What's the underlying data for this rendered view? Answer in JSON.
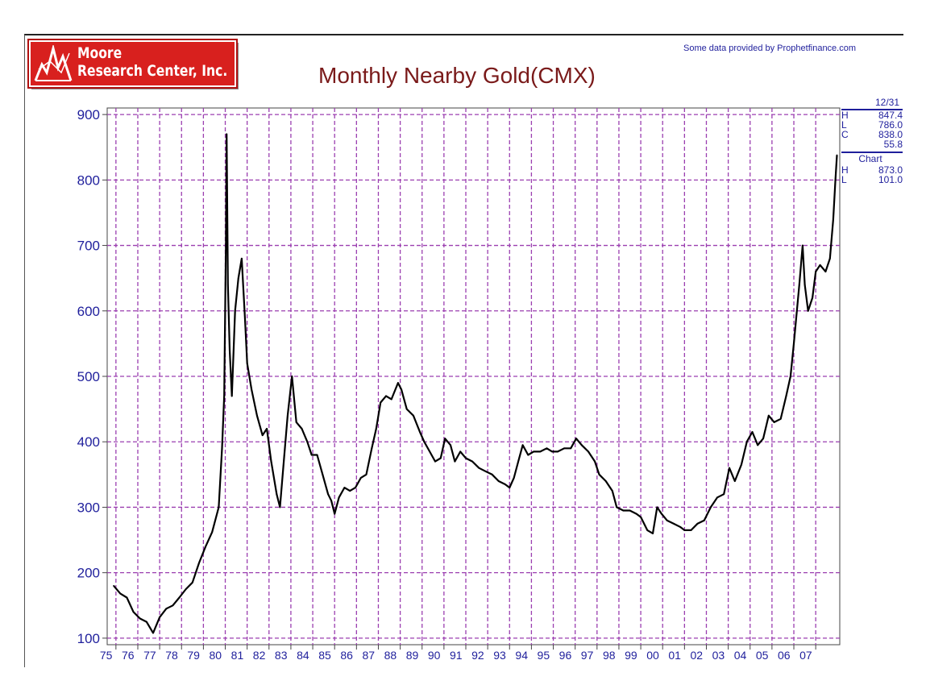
{
  "header": {
    "logo_line1": "Moore",
    "logo_line2": "Research Center, Inc.",
    "credit": "Some data provided by Prophetfinance.com",
    "title": "Monthly Nearby Gold(CMX)"
  },
  "stats": {
    "date": "12/31",
    "high_label": "H",
    "high": "847.4",
    "low_label": "L",
    "low": "786.0",
    "close_label": "C",
    "close": "838.0",
    "change": "55.8",
    "chart_label": "Chart",
    "chart_high_label": "H",
    "chart_high": "873.0",
    "chart_low_label": "L",
    "chart_low": "101.0"
  },
  "colors": {
    "grid": "#9b3fb0",
    "axis_text": "#1f1f9c",
    "line": "#000000",
    "title": "#7a1a1a",
    "logo_bg": "#d8201e"
  },
  "chart_data": {
    "type": "line",
    "title": "Monthly Nearby Gold(CMX)",
    "xlabel": "",
    "ylabel": "",
    "ylim": [
      90,
      910
    ],
    "y_ticks": [
      100,
      200,
      300,
      400,
      500,
      600,
      700,
      800,
      900
    ],
    "x_tick_labels": [
      "75",
      "76",
      "77",
      "78",
      "79",
      "80",
      "81",
      "82",
      "83",
      "84",
      "85",
      "86",
      "87",
      "88",
      "89",
      "90",
      "91",
      "92",
      "93",
      "94",
      "95",
      "96",
      "97",
      "98",
      "99",
      "00",
      "01",
      "02",
      "03",
      "04",
      "05",
      "06",
      "07"
    ],
    "xlim": [
      1974.6,
      2008.1
    ],
    "grid": true,
    "series": [
      {
        "points": [
          [
            1974.9,
            180
          ],
          [
            1975.2,
            168
          ],
          [
            1975.5,
            162
          ],
          [
            1975.8,
            140
          ],
          [
            1976.1,
            130
          ],
          [
            1976.4,
            125
          ],
          [
            1976.7,
            108
          ],
          [
            1977.0,
            132
          ],
          [
            1977.3,
            145
          ],
          [
            1977.6,
            150
          ],
          [
            1977.9,
            162
          ],
          [
            1978.2,
            175
          ],
          [
            1978.5,
            185
          ],
          [
            1978.8,
            215
          ],
          [
            1979.1,
            240
          ],
          [
            1979.4,
            262
          ],
          [
            1979.7,
            300
          ],
          [
            1979.85,
            390
          ],
          [
            1979.95,
            470
          ],
          [
            1980.03,
            700
          ],
          [
            1980.06,
            870
          ],
          [
            1980.12,
            640
          ],
          [
            1980.2,
            540
          ],
          [
            1980.3,
            470
          ],
          [
            1980.45,
            600
          ],
          [
            1980.6,
            650
          ],
          [
            1980.75,
            680
          ],
          [
            1980.9,
            590
          ],
          [
            1981.0,
            520
          ],
          [
            1981.2,
            480
          ],
          [
            1981.45,
            440
          ],
          [
            1981.7,
            410
          ],
          [
            1981.9,
            420
          ],
          [
            1982.1,
            370
          ],
          [
            1982.35,
            320
          ],
          [
            1982.5,
            300
          ],
          [
            1982.7,
            380
          ],
          [
            1982.85,
            440
          ],
          [
            1983.05,
            500
          ],
          [
            1983.25,
            430
          ],
          [
            1983.5,
            420
          ],
          [
            1983.75,
            400
          ],
          [
            1983.95,
            380
          ],
          [
            1984.2,
            380
          ],
          [
            1984.45,
            350
          ],
          [
            1984.7,
            320
          ],
          [
            1984.85,
            310
          ],
          [
            1985.0,
            290
          ],
          [
            1985.2,
            315
          ],
          [
            1985.45,
            330
          ],
          [
            1985.7,
            325
          ],
          [
            1985.95,
            330
          ],
          [
            1986.2,
            345
          ],
          [
            1986.45,
            350
          ],
          [
            1986.7,
            390
          ],
          [
            1986.9,
            420
          ],
          [
            1987.1,
            460
          ],
          [
            1987.35,
            470
          ],
          [
            1987.6,
            465
          ],
          [
            1987.9,
            490
          ],
          [
            1988.05,
            480
          ],
          [
            1988.3,
            450
          ],
          [
            1988.6,
            440
          ],
          [
            1988.9,
            415
          ],
          [
            1989.1,
            400
          ],
          [
            1989.35,
            385
          ],
          [
            1989.6,
            370
          ],
          [
            1989.85,
            375
          ],
          [
            1990.05,
            405
          ],
          [
            1990.3,
            395
          ],
          [
            1990.5,
            370
          ],
          [
            1990.75,
            385
          ],
          [
            1991.0,
            375
          ],
          [
            1991.3,
            370
          ],
          [
            1991.6,
            360
          ],
          [
            1991.9,
            355
          ],
          [
            1992.2,
            350
          ],
          [
            1992.5,
            340
          ],
          [
            1992.8,
            335
          ],
          [
            1993.0,
            330
          ],
          [
            1993.2,
            345
          ],
          [
            1993.4,
            370
          ],
          [
            1993.6,
            395
          ],
          [
            1993.85,
            380
          ],
          [
            1994.1,
            385
          ],
          [
            1994.4,
            385
          ],
          [
            1994.7,
            390
          ],
          [
            1994.95,
            385
          ],
          [
            1995.2,
            385
          ],
          [
            1995.5,
            390
          ],
          [
            1995.8,
            390
          ],
          [
            1996.05,
            405
          ],
          [
            1996.3,
            395
          ],
          [
            1996.6,
            385
          ],
          [
            1996.9,
            370
          ],
          [
            1997.1,
            350
          ],
          [
            1997.4,
            340
          ],
          [
            1997.7,
            325
          ],
          [
            1997.9,
            300
          ],
          [
            1998.2,
            295
          ],
          [
            1998.5,
            295
          ],
          [
            1998.8,
            290
          ],
          [
            1999.0,
            285
          ],
          [
            1999.3,
            265
          ],
          [
            1999.55,
            260
          ],
          [
            1999.75,
            300
          ],
          [
            1999.95,
            290
          ],
          [
            2000.2,
            280
          ],
          [
            2000.5,
            275
          ],
          [
            2000.8,
            270
          ],
          [
            2001.0,
            265
          ],
          [
            2001.3,
            265
          ],
          [
            2001.6,
            275
          ],
          [
            2001.9,
            280
          ],
          [
            2002.2,
            300
          ],
          [
            2002.5,
            315
          ],
          [
            2002.8,
            320
          ],
          [
            2003.05,
            360
          ],
          [
            2003.3,
            340
          ],
          [
            2003.6,
            365
          ],
          [
            2003.85,
            400
          ],
          [
            2004.1,
            415
          ],
          [
            2004.35,
            395
          ],
          [
            2004.6,
            405
          ],
          [
            2004.85,
            440
          ],
          [
            2005.1,
            430
          ],
          [
            2005.4,
            435
          ],
          [
            2005.65,
            470
          ],
          [
            2005.85,
            500
          ],
          [
            2006.0,
            550
          ],
          [
            2006.25,
            640
          ],
          [
            2006.4,
            700
          ],
          [
            2006.5,
            640
          ],
          [
            2006.65,
            600
          ],
          [
            2006.85,
            620
          ],
          [
            2007.0,
            660
          ],
          [
            2007.2,
            670
          ],
          [
            2007.45,
            660
          ],
          [
            2007.65,
            680
          ],
          [
            2007.8,
            740
          ],
          [
            2007.9,
            800
          ],
          [
            2007.97,
            838
          ]
        ]
      }
    ]
  }
}
